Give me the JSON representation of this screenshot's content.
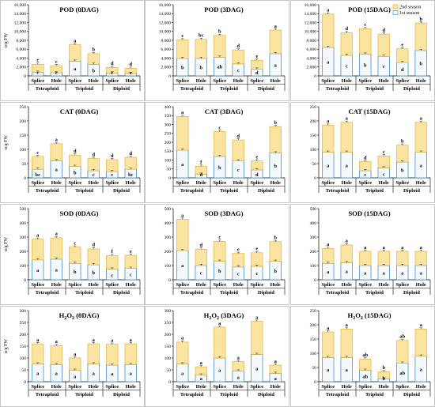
{
  "legend": {
    "s2": "2nd season",
    "s1": "1st season"
  },
  "colors": {
    "s2": "#fbe3a0",
    "s2_edge": "#e3a92a",
    "s1": "#f4f9fe",
    "s1_edge": "#2d83c4",
    "err": "#444444"
  },
  "chart_data": [
    {
      "type": "bar",
      "stacked": true,
      "title": "POD (0DAG)",
      "ylabel": "u/g FW",
      "ylim": [
        0,
        16000
      ],
      "yticks": [
        0,
        2000,
        4000,
        6000,
        8000,
        10000,
        12000,
        14000,
        16000
      ],
      "categories": [
        "Splice",
        "Hole",
        "Splice",
        "Hole",
        "Splice",
        "Hole"
      ],
      "groups": [
        "Tetraploid",
        "Triploid",
        "Diploid"
      ],
      "series": [
        {
          "name": "1st season",
          "values": [
            800,
            700,
            3300,
            2600,
            650,
            550
          ],
          "labels": [
            "c",
            "c",
            "a",
            "b",
            "c",
            "c"
          ]
        },
        {
          "name": "2nd season",
          "values": [
            1800,
            1600,
            3700,
            2400,
            1250,
            1150
          ],
          "labels": [
            "c",
            "c",
            "a",
            "b",
            "d",
            "d"
          ]
        }
      ]
    },
    {
      "type": "bar",
      "stacked": true,
      "title": "POD (3DAG)",
      "ylabel": "",
      "ylim": [
        0,
        16000
      ],
      "yticks": [
        0,
        2000,
        4000,
        6000,
        8000,
        10000,
        12000,
        14000,
        16000
      ],
      "categories": [
        "Splice",
        "Hole",
        "Splice",
        "Hole",
        "Splice",
        "Hole"
      ],
      "groups": [
        "Tetraploid",
        "Triploid",
        "Diploid"
      ],
      "series": [
        {
          "name": "1st season",
          "values": [
            3900,
            3900,
            4200,
            2700,
            1500,
            5000
          ],
          "labels": [
            "b",
            "b",
            "ab",
            "c",
            "d",
            "a"
          ]
        },
        {
          "name": "2nd season",
          "values": [
            4200,
            4300,
            4900,
            3100,
            2000,
            5300
          ],
          "labels": [
            "c",
            "bc",
            "b",
            "d",
            "e",
            "a"
          ]
        }
      ]
    },
    {
      "type": "bar",
      "stacked": true,
      "title": "POD (15DAG)",
      "ylabel": "",
      "ylim": [
        0,
        16000
      ],
      "yticks": [
        0,
        2000,
        4000,
        6000,
        8000,
        10000,
        12000,
        14000,
        16000
      ],
      "categories": [
        "Splice",
        "Hole",
        "Splice",
        "Hole",
        "Splice",
        "Hole"
      ],
      "groups": [
        "Tetraploid",
        "Triploid",
        "Diploid"
      ],
      "series": [
        {
          "name": "1st season",
          "values": [
            6400,
            4600,
            4900,
            4400,
            3000,
            5700
          ],
          "labels": [
            "a",
            "c",
            "b",
            "c",
            "d",
            "b"
          ]
        },
        {
          "name": "2nd season",
          "values": [
            7500,
            5100,
            5700,
            5000,
            3100,
            6200
          ],
          "labels": [
            "a",
            "d",
            "c",
            "d",
            "e",
            "b"
          ]
        }
      ]
    },
    {
      "type": "bar",
      "stacked": true,
      "title": "CAT (0DAG)",
      "ylabel": "u/g FW",
      "ylim": [
        0,
        250
      ],
      "yticks": [
        0,
        50,
        100,
        150,
        200,
        250
      ],
      "categories": [
        "Splice",
        "Hole",
        "Splice",
        "Hole",
        "Splice",
        "Hole"
      ],
      "groups": [
        "Tetraploid",
        "Triploid",
        "Diploid"
      ],
      "series": [
        {
          "name": "1st season",
          "values": [
            30,
            60,
            40,
            25,
            22,
            30
          ],
          "labels": [
            "bc",
            "a",
            "b",
            "c",
            "c",
            "bc"
          ]
        },
        {
          "name": "2nd season",
          "values": [
            45,
            60,
            40,
            43,
            42,
            42
          ],
          "labels": [
            "c",
            "a",
            "d",
            "d",
            "d",
            "d"
          ]
        }
      ]
    },
    {
      "type": "bar",
      "stacked": true,
      "title": "CAT (3DAG)",
      "ylabel": "",
      "ylim": [
        0,
        400
      ],
      "yticks": [
        0,
        50,
        100,
        150,
        200,
        250,
        300,
        350,
        400
      ],
      "categories": [
        "Splice",
        "Hole",
        "Splice",
        "Hole",
        "Splice",
        "Hole"
      ],
      "groups": [
        "Tetraploid",
        "Triploid",
        "Diploid"
      ],
      "series": [
        {
          "name": "1st season",
          "values": [
            155,
            20,
            120,
            95,
            45,
            140
          ],
          "labels": [
            "a",
            "d",
            "b",
            "c",
            "d",
            "b"
          ]
        },
        {
          "name": "2nd season",
          "values": [
            190,
            45,
            140,
            118,
            50,
            148
          ],
          "labels": [
            "a",
            "f",
            "c",
            "d",
            "e",
            "b"
          ]
        }
      ]
    },
    {
      "type": "bar",
      "stacked": true,
      "title": "CAT (15DAG)",
      "ylabel": "",
      "ylim": [
        0,
        250
      ],
      "yticks": [
        0,
        50,
        100,
        150,
        200,
        250
      ],
      "categories": [
        "Splice",
        "Hole",
        "Splice",
        "Hole",
        "Splice",
        "Hole"
      ],
      "groups": [
        "Tetraploid",
        "Triploid",
        "Diploid"
      ],
      "series": [
        {
          "name": "1st season",
          "values": [
            90,
            90,
            25,
            35,
            55,
            90
          ],
          "labels": [
            "a",
            "a",
            "c",
            "c",
            "b",
            "a"
          ]
        },
        {
          "name": "2nd season",
          "values": [
            95,
            105,
            32,
            42,
            60,
            105
          ],
          "labels": [
            "a",
            "a",
            "d",
            "c",
            "b",
            "a"
          ]
        }
      ]
    },
    {
      "type": "bar",
      "stacked": true,
      "title": "SOD (0DAG)",
      "ylabel": "u/g FW",
      "ylim": [
        0,
        500
      ],
      "yticks": [
        0,
        100,
        200,
        300,
        400,
        500
      ],
      "categories": [
        "Splice",
        "Hole",
        "Splice",
        "Hole",
        "Splice",
        "Hole"
      ],
      "groups": [
        "Tetraploid",
        "Triploid",
        "Diploid"
      ],
      "series": [
        {
          "name": "1st season",
          "values": [
            140,
            145,
            115,
            105,
            75,
            80
          ],
          "labels": [
            "a",
            "a",
            "b",
            "b",
            "c",
            "c"
          ]
        },
        {
          "name": "2nd season",
          "values": [
            145,
            150,
            115,
            112,
            95,
            92
          ],
          "labels": [
            "a",
            "a",
            "c",
            "d",
            "f",
            "e"
          ]
        }
      ]
    },
    {
      "type": "bar",
      "stacked": true,
      "title": "SOD (3DAG)",
      "ylabel": "",
      "ylim": [
        0,
        500
      ],
      "yticks": [
        0,
        100,
        200,
        300,
        400,
        500
      ],
      "categories": [
        "Splice",
        "Hole",
        "Splice",
        "Hole",
        "Splice",
        "Hole"
      ],
      "groups": [
        "Tetraploid",
        "Triploid",
        "Diploid"
      ],
      "series": [
        {
          "name": "1st season",
          "values": [
            205,
            100,
            130,
            90,
            95,
            130
          ],
          "labels": [
            "a",
            "c",
            "b",
            "c",
            "c",
            "b"
          ]
        },
        {
          "name": "2nd season",
          "values": [
            220,
            115,
            140,
            95,
            95,
            138
          ],
          "labels": [
            "a",
            "d",
            "c",
            "e",
            "e",
            "b"
          ]
        }
      ]
    },
    {
      "type": "bar",
      "stacked": true,
      "title": "SOD (15DAG)",
      "ylabel": "",
      "ylim": [
        0,
        500
      ],
      "yticks": [
        0,
        100,
        200,
        300,
        400,
        500
      ],
      "categories": [
        "Splice",
        "Hole",
        "Splice",
        "Hole",
        "Splice",
        "Hole"
      ],
      "groups": [
        "Tetraploid",
        "Triploid",
        "Diploid"
      ],
      "series": [
        {
          "name": "1st season",
          "values": [
            115,
            120,
            100,
            100,
            100,
            100
          ],
          "labels": [
            "a",
            "a",
            "a",
            "a",
            "a",
            "a"
          ]
        },
        {
          "name": "2nd season",
          "values": [
            105,
            125,
            100,
            100,
            100,
            100
          ],
          "labels": [
            "a",
            "a",
            "a",
            "a",
            "a",
            "a"
          ]
        }
      ]
    },
    {
      "type": "bar",
      "stacked": true,
      "title": "H2O2 (0DAG)",
      "ylabel": "u/g FW",
      "ylim": [
        0,
        300
      ],
      "yticks": [
        0,
        50,
        100,
        150,
        200,
        250,
        300
      ],
      "categories": [
        "Splice",
        "Hole",
        "Splice",
        "Hole",
        "Splice",
        "Hole"
      ],
      "groups": [
        "Tetraploid",
        "Triploid",
        "Diploid"
      ],
      "series": [
        {
          "name": "1st season",
          "values": [
            75,
            72,
            48,
            75,
            70,
            72
          ],
          "labels": [
            "a",
            "a",
            "a",
            "a",
            "a",
            "a"
          ]
        },
        {
          "name": "2nd season",
          "values": [
            85,
            80,
            52,
            85,
            88,
            88
          ],
          "labels": [
            "a",
            "a",
            "a",
            "a",
            "a",
            "a"
          ]
        }
      ]
    },
    {
      "type": "bar",
      "stacked": true,
      "title": "H2O2 (3DAG)",
      "ylabel": "",
      "ylim": [
        0,
        300
      ],
      "yticks": [
        0,
        50,
        100,
        150,
        200,
        250,
        300
      ],
      "categories": [
        "Splice",
        "Hole",
        "Splice",
        "Hole",
        "Splice",
        "Hole"
      ],
      "groups": [
        "Tetraploid",
        "Triploid",
        "Diploid"
      ],
      "series": [
        {
          "name": "1st season",
          "values": [
            75,
            28,
            100,
            45,
            115,
            35
          ],
          "labels": [
            "a",
            "a",
            "a",
            "a",
            "a",
            "a"
          ]
        },
        {
          "name": "2nd season",
          "values": [
            92,
            35,
            130,
            40,
            140,
            35
          ],
          "labels": [
            "a",
            "a",
            "a",
            "a",
            "a",
            "a"
          ]
        }
      ]
    },
    {
      "type": "bar",
      "stacked": true,
      "title": "H2O2 (15DAG)",
      "ylabel": "",
      "ylim": [
        0,
        250
      ],
      "yticks": [
        0,
        50,
        100,
        150,
        200,
        250
      ],
      "categories": [
        "Splice",
        "Hole",
        "Splice",
        "Hole",
        "Splice",
        "Hole"
      ],
      "groups": [
        "Tetraploid",
        "Triploid",
        "Diploid"
      ],
      "series": [
        {
          "name": "1st season",
          "values": [
            85,
            85,
            40,
            10,
            65,
            90
          ],
          "labels": [
            "a",
            "a",
            "ab",
            "b",
            "ab",
            "a"
          ]
        },
        {
          "name": "2nd season",
          "values": [
            90,
            100,
            40,
            25,
            80,
            95
          ],
          "labels": [
            "a",
            "a",
            "ab",
            "b",
            "ab",
            "a"
          ]
        }
      ]
    }
  ]
}
